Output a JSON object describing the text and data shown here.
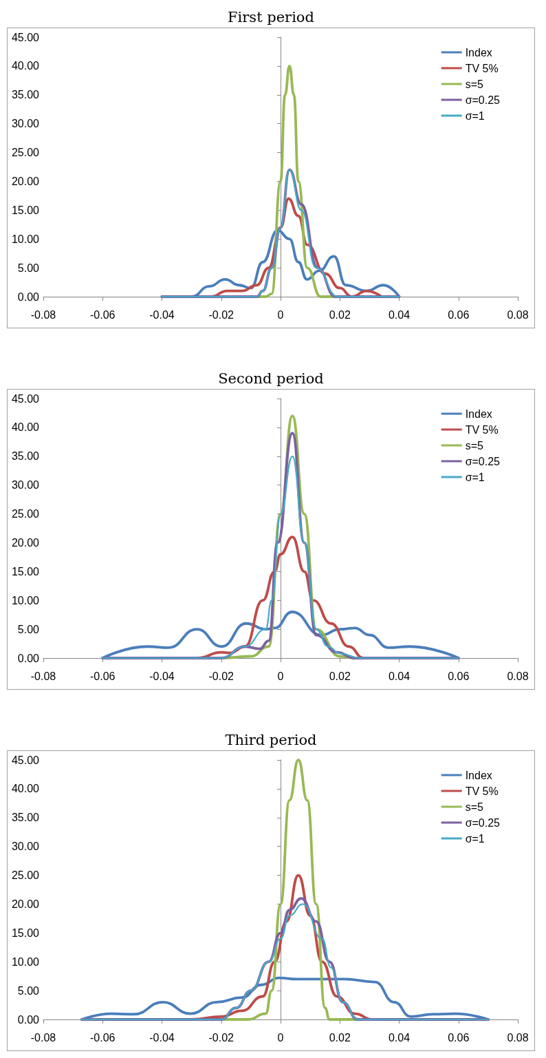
{
  "chart_data": [
    {
      "type": "line",
      "title": "First period",
      "legend": "top right",
      "marker": "none",
      "line_style": "solid",
      "xlim": [
        -0.08,
        0.08
      ],
      "xticks": [
        -0.08,
        -0.06,
        -0.04,
        -0.02,
        0,
        0.02,
        0.04,
        0.06,
        0.08
      ],
      "ylim": [
        0,
        45
      ],
      "yticks": [
        {
          "value": 0,
          "label": "0.00"
        },
        {
          "value": 5,
          "label": "5.00"
        },
        {
          "value": 10,
          "label": "10.00"
        },
        {
          "value": 15,
          "label": "15.00"
        },
        {
          "value": 20,
          "label": "20.00"
        },
        {
          "value": 25,
          "label": "25.00"
        },
        {
          "value": 30,
          "label": "30.00"
        },
        {
          "value": 35,
          "label": "35.00"
        },
        {
          "value": 40,
          "label": "40.00"
        },
        {
          "value": 45,
          "label": "45.00"
        }
      ],
      "series": [
        {
          "name": "Index",
          "color": "#4a7ebb",
          "x": [
            -0.04,
            -0.03,
            -0.024,
            -0.0187,
            -0.014,
            -0.01,
            -0.006,
            -0.001,
            0.003,
            0.006,
            0.0089,
            0.013,
            0.018,
            0.022,
            0.029,
            0.0347,
            0.04
          ],
          "values": [
            0,
            0,
            1.8,
            3,
            2,
            1.5,
            6,
            11.5,
            10,
            6,
            3,
            4.5,
            7,
            2,
            1,
            2,
            0
          ]
        },
        {
          "name": "TV 5%",
          "color": "#be4b48",
          "x": [
            -0.04,
            -0.0235,
            -0.018,
            -0.013,
            -0.008,
            -0.004,
            0,
            0.0027,
            0.006,
            0.009,
            0.015,
            0.02,
            0.024,
            0.029,
            0.034
          ],
          "values": [
            0,
            0,
            1,
            1,
            2,
            5,
            12,
            17,
            14,
            9,
            4,
            1.5,
            0,
            1,
            0
          ]
        },
        {
          "name": "s=5",
          "color": "#98b954",
          "x": [
            -0.04,
            -0.005,
            -0.003,
            0,
            0.0015,
            0.003,
            0.0045,
            0.006,
            0.009,
            0.0135,
            0.04
          ],
          "values": [
            0,
            0,
            0.5,
            20,
            35,
            40,
            35,
            20,
            5,
            0,
            0
          ]
        },
        {
          "name": "σ=0.25",
          "color": "#7d60a0",
          "x": [
            -0.04,
            -0.008,
            -0.006,
            -0.003,
            0,
            0.003,
            0.007,
            0.0125,
            0.0185,
            0.04
          ],
          "values": [
            0,
            0,
            1,
            5,
            12,
            22,
            16,
            5,
            0,
            0
          ]
        },
        {
          "name": "σ=1",
          "color": "#46aac5",
          "x": [
            -0.04,
            -0.008,
            -0.006,
            -0.003,
            0,
            0.003,
            0.007,
            0.012,
            0.0193,
            0.04
          ],
          "values": [
            0,
            0,
            1,
            5,
            12,
            22,
            15,
            5,
            0,
            0
          ]
        }
      ]
    },
    {
      "type": "line",
      "title": "Second period",
      "legend": "top right",
      "marker": "none",
      "line_style": "solid",
      "xlim": [
        -0.08,
        0.08
      ],
      "xticks": [
        -0.08,
        -0.06,
        -0.04,
        -0.02,
        0,
        0.02,
        0.04,
        0.06,
        0.08
      ],
      "ylim": [
        0,
        45
      ],
      "yticks": [
        {
          "value": 0,
          "label": "0.00"
        },
        {
          "value": 5,
          "label": "5.00"
        },
        {
          "value": 10,
          "label": "10.00"
        },
        {
          "value": 15,
          "label": "15.00"
        },
        {
          "value": 20,
          "label": "20.00"
        },
        {
          "value": 25,
          "label": "25.00"
        },
        {
          "value": 30,
          "label": "30.00"
        },
        {
          "value": 35,
          "label": "35.00"
        },
        {
          "value": 40,
          "label": "40.00"
        },
        {
          "value": 45,
          "label": "45.00"
        }
      ],
      "series": [
        {
          "name": "Index",
          "color": "#4a7ebb",
          "x": [
            -0.06,
            -0.0448,
            -0.0378,
            -0.0282,
            -0.0199,
            -0.0116,
            -0.005,
            -0.002,
            0.0039,
            0.0137,
            0.02,
            0.025,
            0.03,
            0.0364,
            0.0434,
            0.06
          ],
          "values": [
            0,
            2,
            1.8,
            5,
            2,
            6,
            5,
            5.2,
            8,
            4,
            5,
            5.2,
            4,
            1.8,
            2,
            0
          ]
        },
        {
          "name": "TV 5%",
          "color": "#be4b48",
          "x": [
            -0.06,
            -0.028,
            -0.02,
            -0.017,
            -0.012,
            -0.006,
            -0.002,
            0,
            0.004,
            0.008,
            0.011,
            0.017,
            0.023,
            0.028,
            0.06
          ],
          "values": [
            0,
            0,
            1,
            0.9,
            2,
            10,
            15,
            18,
            21,
            15,
            10,
            6,
            2,
            0,
            0
          ]
        },
        {
          "name": "s=5",
          "color": "#98b954",
          "x": [
            -0.06,
            -0.02,
            -0.01,
            -0.004,
            0,
            0.004,
            0.008,
            0.012,
            0.02,
            0.025,
            0.06
          ],
          "values": [
            0,
            0,
            0.3,
            2,
            25,
            42,
            25,
            5,
            0.3,
            0,
            0
          ]
        },
        {
          "name": "σ=0.25",
          "color": "#7d60a0",
          "x": [
            -0.06,
            -0.02,
            -0.012,
            -0.007,
            -0.004,
            -0.001,
            0.004,
            0.008,
            0.012,
            0.019,
            0.025,
            0.06
          ],
          "values": [
            0,
            0,
            2,
            1.6,
            3,
            20,
            39,
            20,
            4,
            1,
            0,
            0
          ]
        },
        {
          "name": "σ=1",
          "color": "#46aac5",
          "x": [
            -0.06,
            -0.02,
            -0.012,
            -0.005,
            -0.003,
            0,
            0.004,
            0.008,
            0.012,
            0.016,
            0.02,
            0.027,
            0.06
          ],
          "values": [
            0,
            0,
            2,
            5,
            10,
            25,
            35,
            20,
            5,
            2,
            0.8,
            0,
            0
          ]
        }
      ]
    },
    {
      "type": "line",
      "title": "Third period",
      "legend": "top right",
      "marker": "none",
      "line_style": "solid",
      "xlim": [
        -0.08,
        0.08
      ],
      "xticks": [
        -0.08,
        -0.06,
        -0.04,
        -0.02,
        0,
        0.02,
        0.04,
        0.06,
        0.08
      ],
      "ylim": [
        0,
        45
      ],
      "yticks": [
        {
          "value": 0,
          "label": "0.00"
        },
        {
          "value": 5,
          "label": "5.00"
        },
        {
          "value": 10,
          "label": "10.00"
        },
        {
          "value": 15,
          "label": "15.00"
        },
        {
          "value": 20,
          "label": "20.00"
        },
        {
          "value": 25,
          "label": "25.00"
        },
        {
          "value": 30,
          "label": "30.00"
        },
        {
          "value": 35,
          "label": "35.00"
        },
        {
          "value": 40,
          "label": "40.00"
        },
        {
          "value": 45,
          "label": "45.00"
        }
      ],
      "series": [
        {
          "name": "Index",
          "color": "#4a7ebb",
          "x": [
            -0.067,
            -0.057,
            -0.0495,
            -0.0397,
            -0.0304,
            -0.0215,
            -0.013,
            -0.0065,
            -0.0005,
            0.0056,
            0.0215,
            0.0318,
            0.0383,
            0.0439,
            0.0514,
            0.0589,
            0.07
          ],
          "values": [
            0,
            1,
            0.9,
            3,
            1,
            3,
            3.8,
            6,
            7.2,
            7,
            7,
            6.5,
            3,
            0.5,
            0.9,
            1,
            0
          ]
        },
        {
          "name": "TV 5%",
          "color": "#be4b48",
          "x": [
            -0.067,
            -0.03,
            -0.02,
            -0.013,
            -0.006,
            -0.002,
            0.002,
            0.006,
            0.01,
            0.014,
            0.019,
            0.025,
            0.031,
            0.07
          ],
          "values": [
            0,
            0,
            0.5,
            1.5,
            4,
            10,
            17,
            25,
            18,
            10,
            4,
            1,
            0,
            0
          ]
        },
        {
          "name": "s=5",
          "color": "#98b954",
          "x": [
            -0.067,
            -0.011,
            -0.005,
            -0.003,
            0,
            0.003,
            0.006,
            0.009,
            0.012,
            0.015,
            0.0165,
            0.07
          ],
          "values": [
            0,
            0,
            1,
            5,
            20,
            38,
            45,
            38,
            20,
            2,
            0,
            0
          ]
        },
        {
          "name": "σ=0.25",
          "color": "#7d60a0",
          "x": [
            -0.067,
            -0.02,
            -0.015,
            -0.01,
            -0.004,
            0,
            0.003,
            0.007,
            0.012,
            0.0165,
            0.021,
            0.026,
            0.07
          ],
          "values": [
            0,
            0,
            2,
            5,
            10,
            15,
            19,
            21,
            17,
            10,
            3,
            0,
            0
          ]
        },
        {
          "name": "σ=1",
          "color": "#46aac5",
          "x": [
            -0.067,
            -0.02,
            -0.015,
            -0.01,
            -0.004,
            0,
            0.003,
            0.0075,
            0.014,
            0.017,
            0.021,
            0.026,
            0.07
          ],
          "values": [
            0,
            0,
            2,
            5,
            10,
            14,
            18,
            20,
            14,
            9,
            3,
            0,
            0
          ]
        }
      ]
    }
  ]
}
